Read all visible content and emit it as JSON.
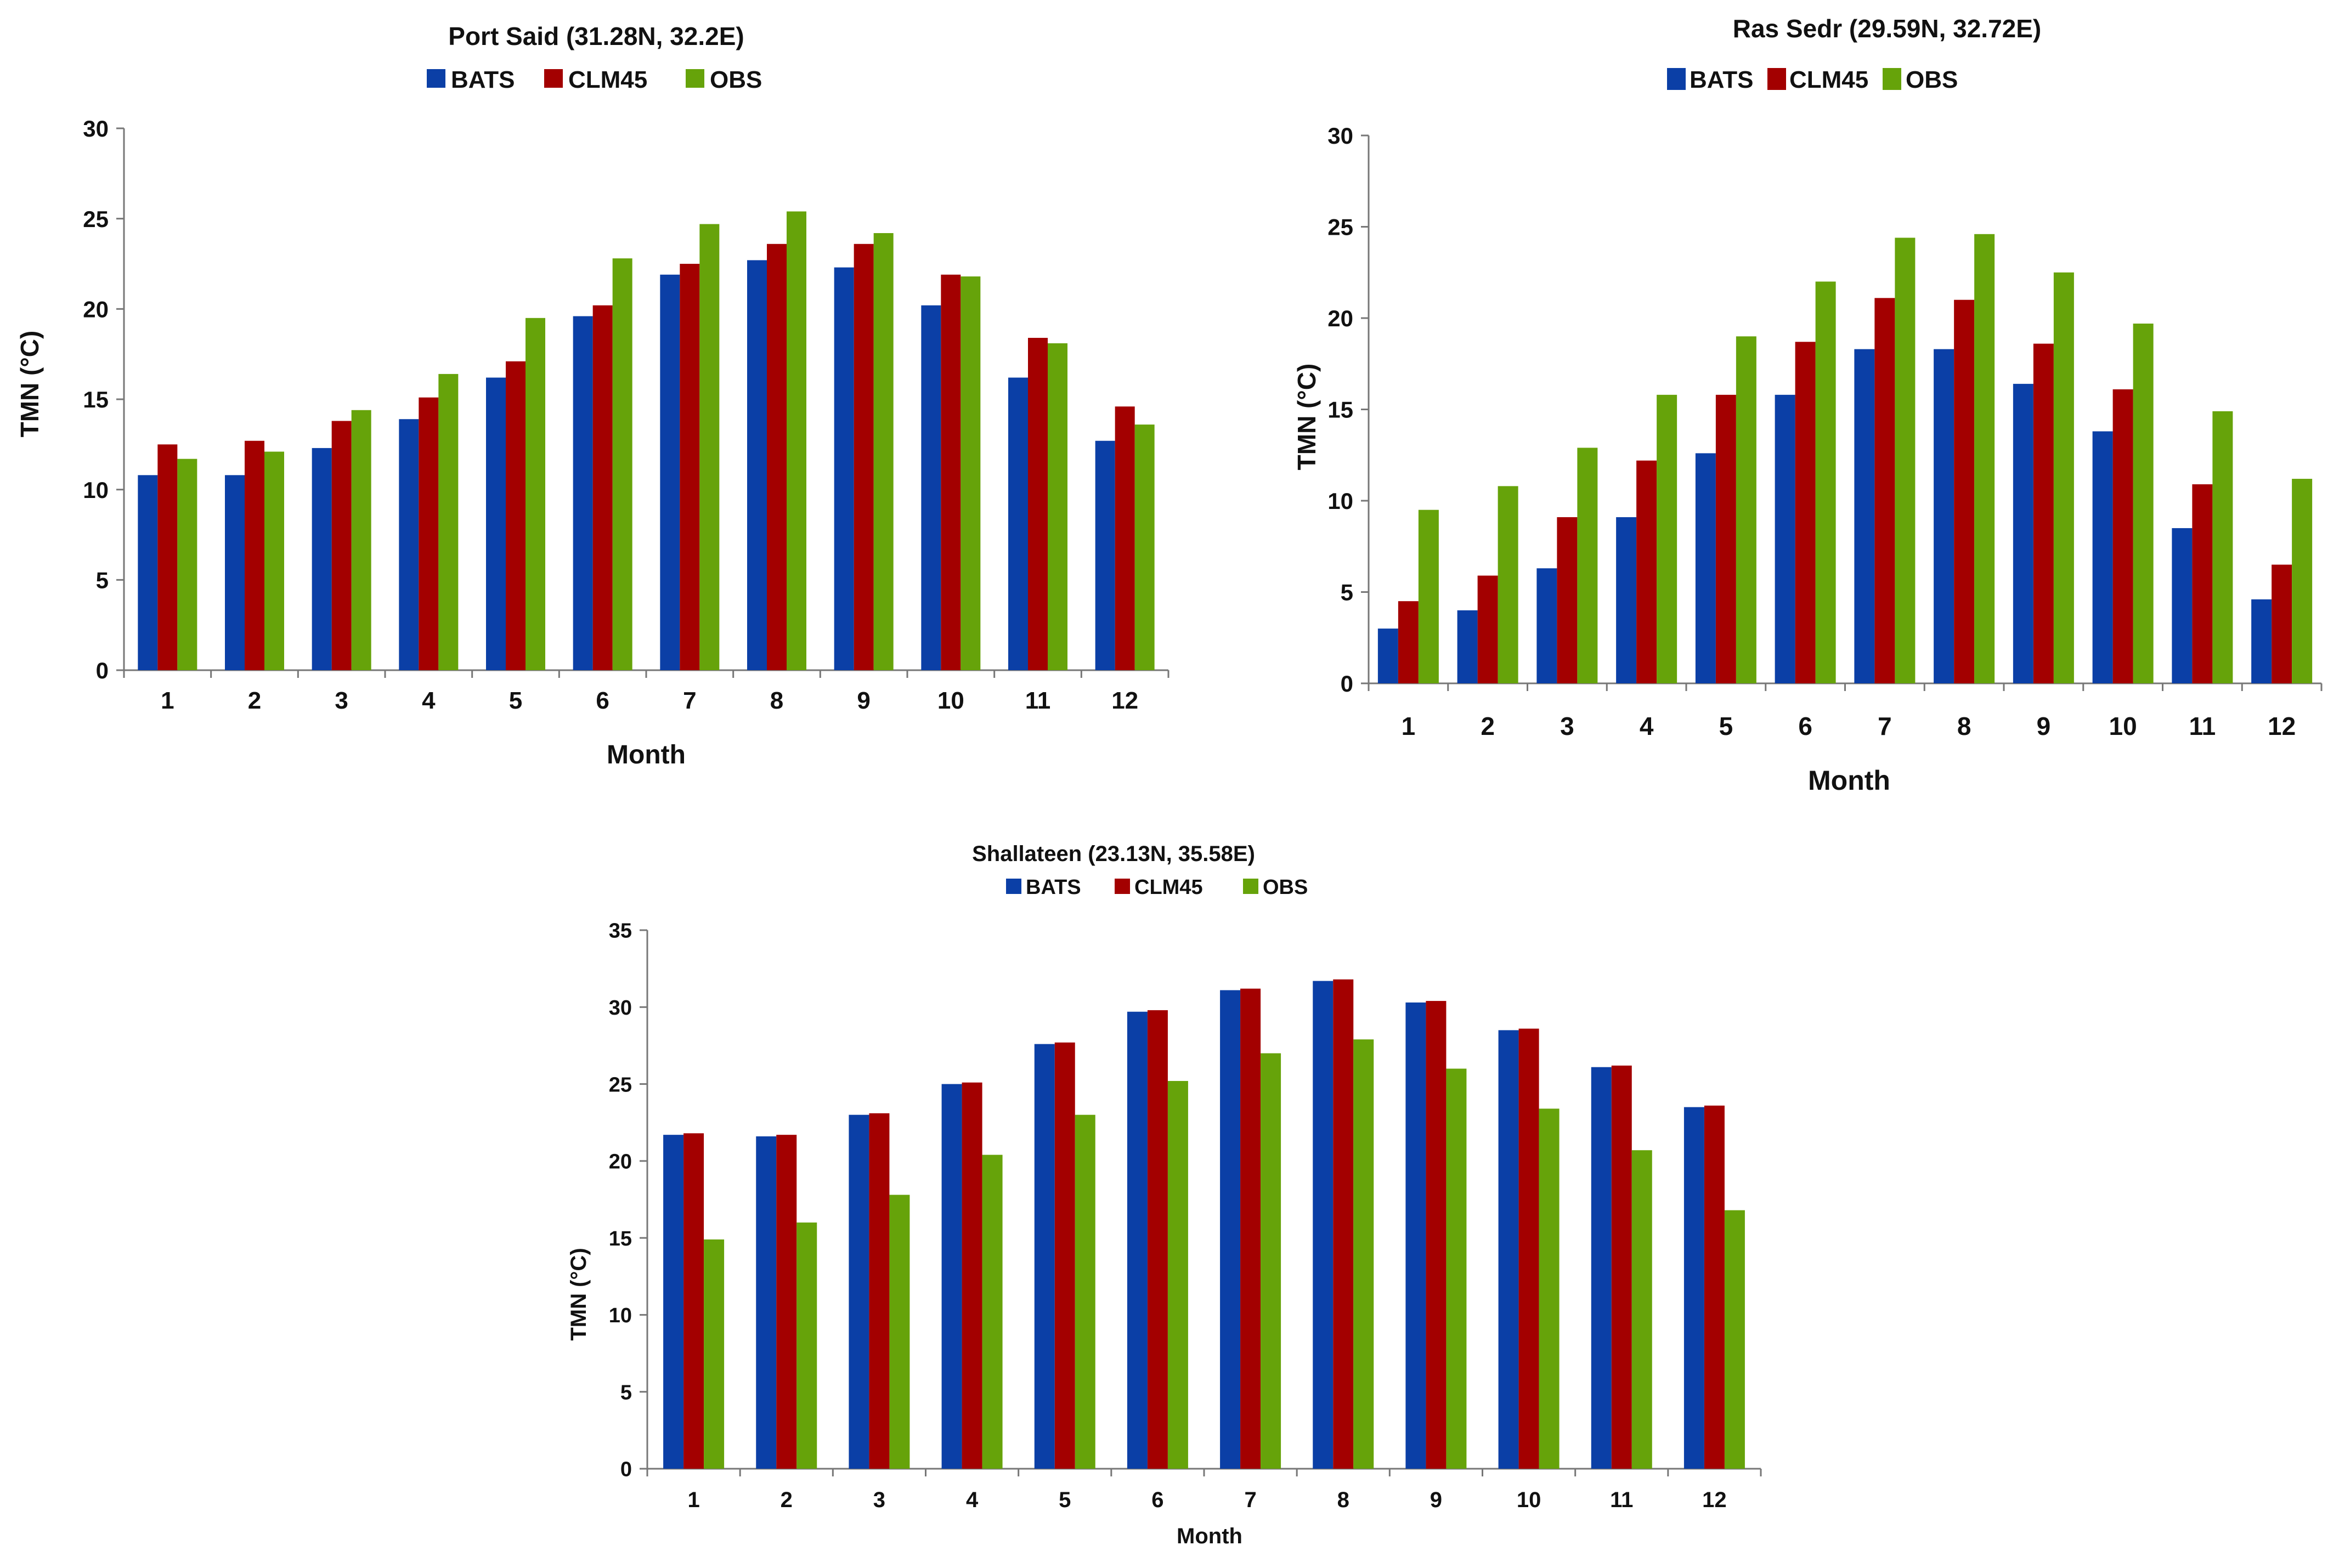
{
  "colors": {
    "BATS": "#0b3fa6",
    "CLM45": "#a30000",
    "OBS": "#66a30a"
  },
  "chart_data": [
    {
      "type": "bar",
      "title": "Port Said (31.28N, 32.2E)",
      "xlabel": "Month",
      "ylabel": "TMN (°C)",
      "ylim": [
        0,
        30
      ],
      "yticks": [
        "0",
        "5",
        "10",
        "15",
        "20",
        "25",
        "30"
      ],
      "categories": [
        "1",
        "2",
        "3",
        "4",
        "5",
        "6",
        "7",
        "8",
        "9",
        "10",
        "11",
        "12"
      ],
      "legend_position": "top-center",
      "grid": false,
      "series": [
        {
          "name": "BATS",
          "values": [
            10.8,
            10.8,
            12.3,
            13.9,
            16.2,
            19.6,
            21.9,
            22.7,
            22.3,
            20.2,
            16.2,
            12.7
          ]
        },
        {
          "name": "CLM45",
          "values": [
            12.5,
            12.7,
            13.8,
            15.1,
            17.1,
            20.2,
            22.5,
            23.6,
            23.6,
            21.9,
            18.4,
            14.6
          ]
        },
        {
          "name": "OBS",
          "values": [
            11.7,
            12.1,
            14.4,
            16.4,
            19.5,
            22.8,
            24.7,
            25.4,
            24.2,
            21.8,
            18.1,
            13.6
          ]
        }
      ]
    },
    {
      "type": "bar",
      "title": "Ras Sedr (29.59N, 32.72E)",
      "xlabel": "Month",
      "ylabel": "TMN (°C)",
      "ylim": [
        0,
        30
      ],
      "yticks": [
        "0",
        "5",
        "10",
        "15",
        "20",
        "25",
        "30"
      ],
      "categories": [
        "1",
        "2",
        "3",
        "4",
        "5",
        "6",
        "7",
        "8",
        "9",
        "10",
        "11",
        "12"
      ],
      "legend_position": "top-center",
      "grid": false,
      "series": [
        {
          "name": "BATS",
          "values": [
            3.0,
            4.0,
            6.3,
            9.1,
            12.6,
            15.8,
            18.3,
            18.3,
            16.4,
            13.8,
            8.5,
            4.6
          ]
        },
        {
          "name": "CLM45",
          "values": [
            4.5,
            5.9,
            9.1,
            12.2,
            15.8,
            18.7,
            21.1,
            21.0,
            18.6,
            16.1,
            10.9,
            6.5
          ]
        },
        {
          "name": "OBS",
          "values": [
            9.5,
            10.8,
            12.9,
            15.8,
            19.0,
            22.0,
            24.4,
            24.6,
            22.5,
            19.7,
            14.9,
            11.2
          ]
        }
      ]
    },
    {
      "type": "bar",
      "title": "Shallateen (23.13N, 35.58E)",
      "xlabel": "Month",
      "ylabel": "TMN (°C)",
      "ylim": [
        0,
        35
      ],
      "yticks": [
        "0",
        "5",
        "10",
        "15",
        "20",
        "25",
        "30",
        "35"
      ],
      "categories": [
        "1",
        "2",
        "3",
        "4",
        "5",
        "6",
        "7",
        "8",
        "9",
        "10",
        "11",
        "12"
      ],
      "legend_position": "top-center",
      "grid": false,
      "series": [
        {
          "name": "BATS",
          "values": [
            21.7,
            21.6,
            23.0,
            25.0,
            27.6,
            29.7,
            31.1,
            31.7,
            30.3,
            28.5,
            26.1,
            23.5
          ]
        },
        {
          "name": "CLM45",
          "values": [
            21.8,
            21.7,
            23.1,
            25.1,
            27.7,
            29.8,
            31.2,
            31.8,
            30.4,
            28.6,
            26.2,
            23.6
          ]
        },
        {
          "name": "OBS",
          "values": [
            14.9,
            16.0,
            17.8,
            20.4,
            23.0,
            25.2,
            27.0,
            27.9,
            26.0,
            23.4,
            20.7,
            16.8
          ]
        }
      ]
    }
  ]
}
